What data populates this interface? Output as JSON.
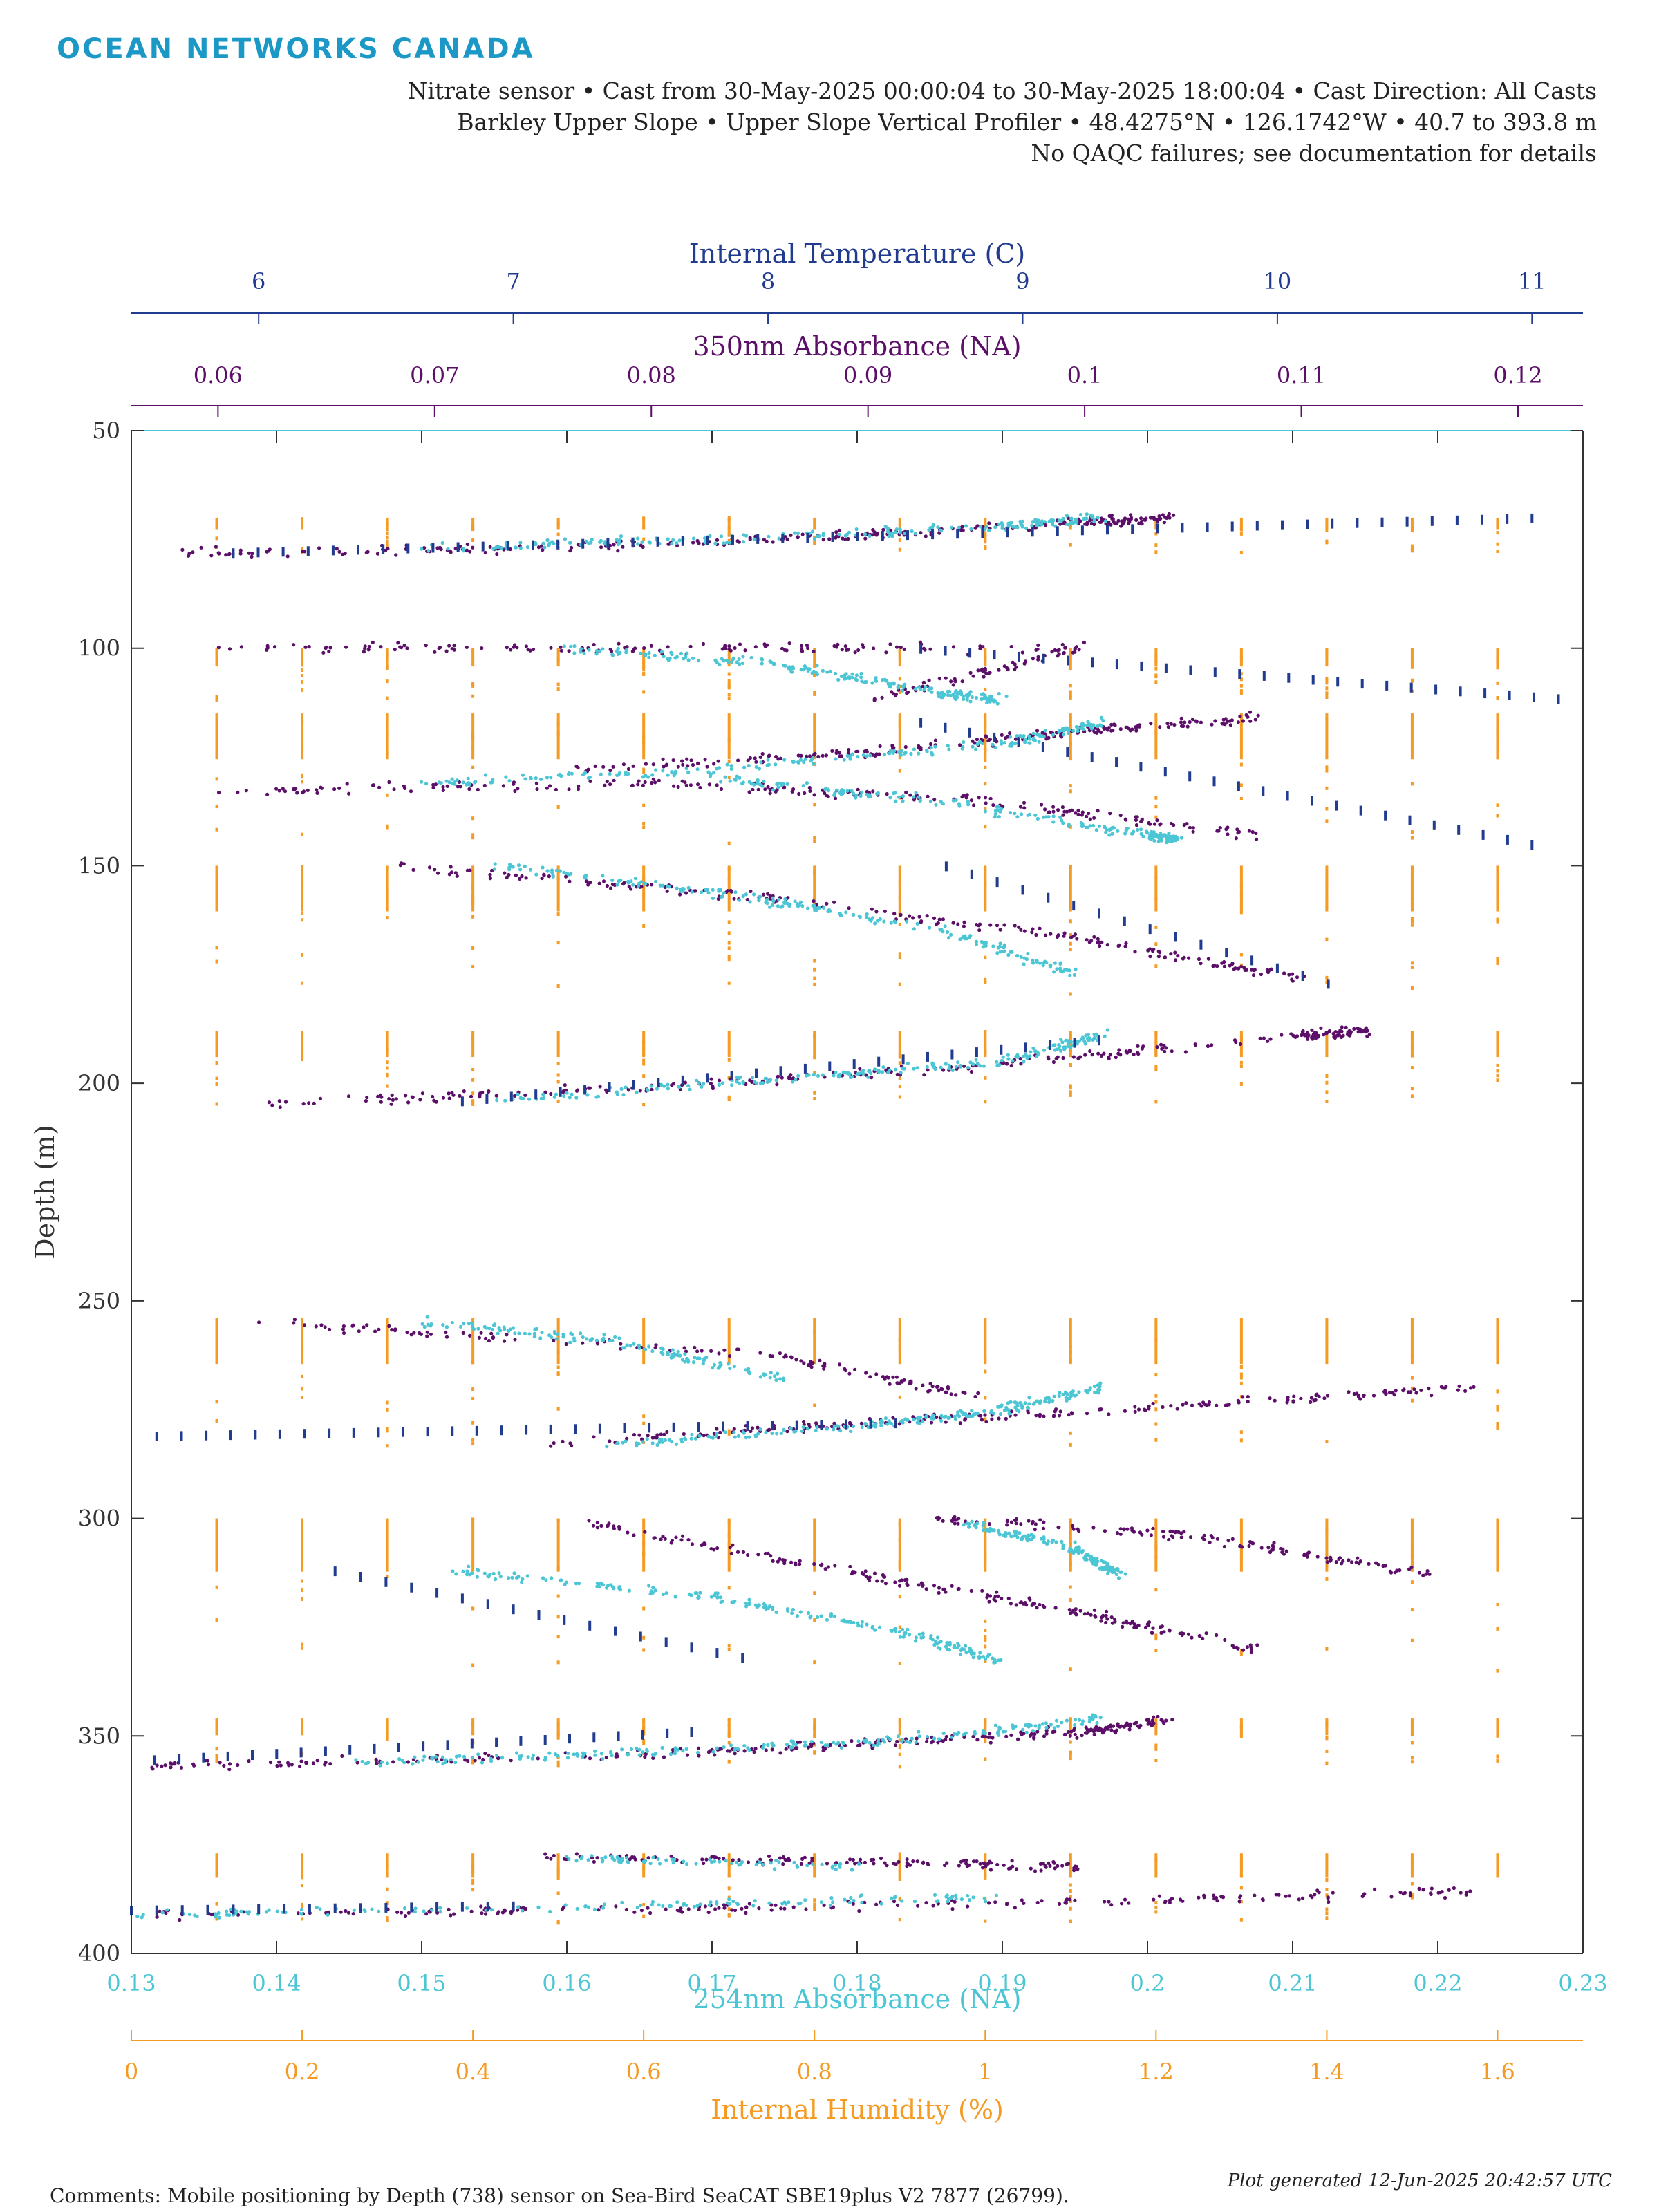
{
  "header": {
    "logo": "OCEAN NETWORKS CANADA",
    "line1": "Nitrate sensor • Cast from 30-May-2025 00:00:04 to 30-May-2025 18:00:04 • Cast Direction: All Casts",
    "line2": "Barkley Upper Slope • Upper Slope Vertical Profiler • 48.4275°N • 126.1742°W • 40.7 to 393.8 m",
    "line3": "No QAQC failures; see documentation for details"
  },
  "footer": {
    "comments": "Comments: Mobile positioning by Depth (738) sensor on Sea-Bird SeaCAT SBE19plus V2 7877 (26799).",
    "generated": "Plot generated 12-Jun-2025 20:42:57 UTC"
  },
  "colors": {
    "temperature": "#213b8f",
    "abs350": "#5c0f68",
    "abs254": "#4cc6d4",
    "humidity": "#f59a22",
    "axis": "#333333"
  },
  "chart_data": {
    "type": "scatter",
    "y_axis": {
      "label": "Depth (m)",
      "range": [
        50,
        400
      ],
      "reversed": true,
      "ticks": [
        50,
        100,
        150,
        200,
        250,
        300,
        350,
        400
      ]
    },
    "x_axes": [
      {
        "id": "temp",
        "label": "Internal Temperature (C)",
        "position": "top",
        "range": [
          5.5,
          11.2
        ],
        "ticks": [
          6,
          7,
          8,
          9,
          10,
          11
        ]
      },
      {
        "id": "abs350",
        "label": "350nm Absorbance (NA)",
        "position": "top",
        "range": [
          0.056,
          0.123
        ],
        "ticks": [
          0.06,
          0.07,
          0.08,
          0.09,
          0.1,
          0.11,
          0.12
        ]
      },
      {
        "id": "abs254",
        "label": "254nm Absorbance (NA)",
        "position": "bottom",
        "range": [
          0.13,
          0.23
        ],
        "ticks": [
          0.13,
          0.14,
          0.15,
          0.16,
          0.17,
          0.18,
          0.19,
          0.2,
          0.21,
          0.22,
          0.23
        ]
      },
      {
        "id": "humid",
        "label": "Internal Humidity (%)",
        "position": "bottom",
        "range": [
          0,
          1.7
        ],
        "ticks": [
          0,
          0.2,
          0.4,
          0.6,
          0.8,
          1,
          1.2,
          1.4,
          1.6
        ]
      }
    ],
    "series": [
      {
        "axis": "humid",
        "color": "humidity",
        "style": "columns",
        "x": [
          0.1,
          0.2,
          0.3,
          0.4,
          0.5,
          0.6,
          0.7,
          0.8,
          0.9,
          1.0,
          1.1,
          1.2,
          1.3,
          1.4,
          1.5,
          1.6,
          1.7
        ],
        "groups": [
          [
            70,
            78
          ],
          [
            100,
            112
          ],
          [
            115,
            145
          ],
          [
            150,
            180
          ],
          [
            188,
            205
          ],
          [
            254,
            284
          ],
          [
            300,
            335
          ],
          [
            346,
            357
          ],
          [
            377,
            393
          ]
        ]
      },
      {
        "axis": "abs350",
        "color": "abs350",
        "style": "cloud",
        "segments": [
          [
            [
              0.058,
              78
            ],
            [
              0.075,
              77
            ],
            [
              0.09,
              74
            ],
            [
              0.1,
              71
            ],
            [
              0.104,
              70
            ]
          ],
          [
            [
              0.06,
              100
            ],
            [
              0.08,
              100
            ],
            [
              0.1,
              100
            ],
            [
              0.09,
              112
            ]
          ],
          [
            [
              0.076,
              128
            ],
            [
              0.09,
              124
            ],
            [
              0.1,
              119
            ],
            [
              0.108,
              116
            ]
          ],
          [
            [
              0.06,
              133
            ],
            [
              0.08,
              131
            ],
            [
              0.095,
              135
            ],
            [
              0.108,
              143
            ]
          ],
          [
            [
              0.068,
              150
            ],
            [
              0.085,
              157
            ],
            [
              0.1,
              167
            ],
            [
              0.11,
              176
            ]
          ],
          [
            [
              0.062,
              205
            ],
            [
              0.08,
              201
            ],
            [
              0.095,
              196
            ],
            [
              0.11,
              189
            ],
            [
              0.113,
              188
            ]
          ],
          [
            [
              0.062,
              255
            ],
            [
              0.085,
              262
            ],
            [
              0.095,
              272
            ]
          ],
          [
            [
              0.075,
              283
            ],
            [
              0.09,
              278
            ],
            [
              0.105,
              274
            ],
            [
              0.118,
              270
            ]
          ],
          [
            [
              0.077,
              301
            ],
            [
              0.09,
              313
            ],
            [
              0.1,
              322
            ],
            [
              0.108,
              330
            ]
          ],
          [
            [
              0.093,
              300
            ],
            [
              0.105,
              304
            ],
            [
              0.116,
              313
            ]
          ],
          [
            [
              0.057,
              357
            ],
            [
              0.075,
              355
            ],
            [
              0.09,
              352
            ],
            [
              0.1,
              349
            ],
            [
              0.104,
              346
            ]
          ],
          [
            [
              0.075,
              378
            ],
            [
              0.09,
              379
            ],
            [
              0.1,
              380
            ]
          ],
          [
            [
              0.057,
              391
            ],
            [
              0.08,
              390
            ],
            [
              0.1,
              388
            ],
            [
              0.118,
              386
            ]
          ]
        ]
      },
      {
        "axis": "abs254",
        "color": "abs254",
        "style": "cloud",
        "segments": [
          [
            [
              0.15,
              77
            ],
            [
              0.17,
              75
            ],
            [
              0.19,
              72
            ],
            [
              0.197,
              70
            ]
          ],
          [
            [
              0.16,
              100
            ],
            [
              0.175,
              104
            ],
            [
              0.185,
              110
            ],
            [
              0.19,
              112
            ]
          ],
          [
            [
              0.15,
              131
            ],
            [
              0.17,
              128
            ],
            [
              0.19,
              122
            ],
            [
              0.197,
              117
            ]
          ],
          [
            [
              0.17,
              130
            ],
            [
              0.185,
              135
            ],
            [
              0.2,
              143
            ],
            [
              0.202,
              144
            ]
          ],
          [
            [
              0.155,
              150
            ],
            [
              0.172,
              157
            ],
            [
              0.186,
              165
            ],
            [
              0.195,
              175
            ]
          ],
          [
            [
              0.155,
              204
            ],
            [
              0.175,
              199
            ],
            [
              0.19,
              195
            ],
            [
              0.197,
              189
            ]
          ],
          [
            [
              0.15,
              255
            ],
            [
              0.163,
              259
            ],
            [
              0.175,
              268
            ]
          ],
          [
            [
              0.163,
              283
            ],
            [
              0.18,
              279
            ],
            [
              0.19,
              275
            ],
            [
              0.197,
              270
            ]
          ],
          [
            [
              0.152,
              312
            ],
            [
              0.17,
              318
            ],
            [
              0.183,
              326
            ],
            [
              0.19,
              333
            ]
          ],
          [
            [
              0.187,
              301
            ],
            [
              0.195,
              307
            ],
            [
              0.198,
              313
            ]
          ],
          [
            [
              0.145,
              356
            ],
            [
              0.165,
              354
            ],
            [
              0.183,
              351
            ],
            [
              0.197,
              346
            ]
          ],
          [
            [
              0.16,
              378
            ],
            [
              0.18,
              380
            ]
          ],
          [
            [
              0.13,
              391
            ],
            [
              0.165,
              389
            ],
            [
              0.19,
              387
            ]
          ]
        ]
      },
      {
        "axis": "temp",
        "color": "temperature",
        "style": "columns",
        "groups": [
          {
            "x0": 5.9,
            "y0": 78,
            "x1": 11.0,
            "y1": 70,
            "depth_from": 70,
            "depth_to": 78
          },
          {
            "x0": 8.6,
            "y0": 100,
            "x1": 11.2,
            "y1": 112,
            "depth_from": 100,
            "depth_to": 112
          },
          {
            "x0": 8.6,
            "y0": 117,
            "x1": 11.0,
            "y1": 145,
            "depth_from": 117,
            "depth_to": 145
          },
          {
            "x0": 8.7,
            "y0": 150,
            "x1": 10.2,
            "y1": 177,
            "depth_from": 150,
            "depth_to": 177
          },
          {
            "x0": 6.8,
            "y0": 204,
            "x1": 9.3,
            "y1": 190,
            "depth_from": 190,
            "depth_to": 205
          },
          {
            "x0": 5.6,
            "y0": 281,
            "x1": 8.5,
            "y1": 278,
            "depth_from": 255,
            "depth_to": 284
          },
          {
            "x0": 6.3,
            "y0": 312,
            "x1": 7.9,
            "y1": 332,
            "depth_from": 300,
            "depth_to": 335
          },
          {
            "x0": 5.4,
            "y0": 356,
            "x1": 7.7,
            "y1": 349,
            "depth_from": 346,
            "depth_to": 357
          },
          {
            "x0": 5.5,
            "y0": 390,
            "x1": 7.0,
            "y1": 389,
            "depth_from": 385,
            "depth_to": 393
          }
        ]
      }
    ]
  }
}
